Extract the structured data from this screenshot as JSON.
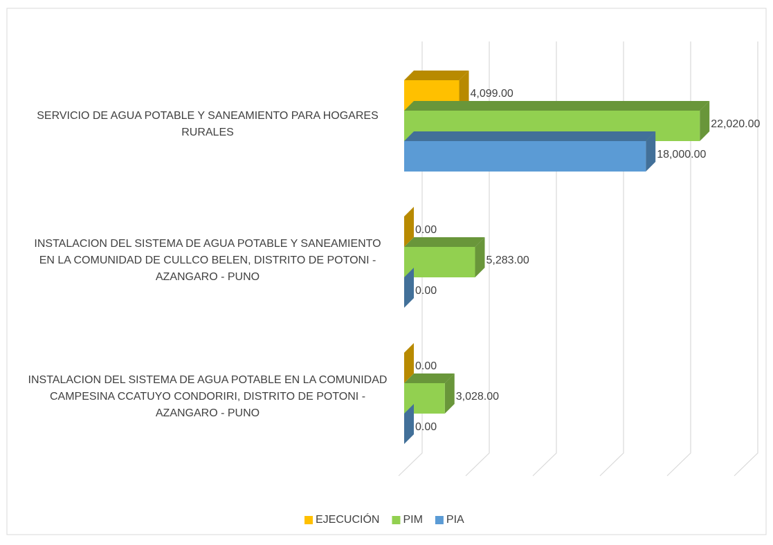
{
  "chart_data": {
    "type": "bar3d_horizontal",
    "categories": [
      "SERVICIO DE AGUA POTABLE Y SANEAMIENTO PARA HOGARES RURALES",
      "INSTALACION DEL SISTEMA DE AGUA POTABLE Y SANEAMIENTO EN LA COMUNIDAD DE CULLCO BELEN, DISTRITO DE POTONI - AZANGARO - PUNO",
      "INSTALACION DEL SISTEMA DE AGUA POTABLE EN LA COMUNIDAD CAMPESINA CCATUYO CONDORIRI, DISTRITO DE POTONI - AZANGARO - PUNO"
    ],
    "series": [
      {
        "name": "EJECUCIÓN",
        "color": "#ffc000",
        "values": [
          4099,
          0,
          0
        ],
        "value_labels": [
          "4,099.00",
          "0.00",
          "0.00"
        ]
      },
      {
        "name": "PIM",
        "color": "#92d050",
        "values": [
          22020,
          5283,
          3028
        ],
        "value_labels": [
          "22,020.00",
          "5,283.00",
          "3,028.00"
        ]
      },
      {
        "name": "PIA",
        "color": "#5b9bd5",
        "values": [
          18000,
          0,
          0
        ],
        "value_labels": [
          "18,000.00",
          "0.00",
          "0.00"
        ]
      }
    ],
    "xlim": [
      0,
      25000
    ],
    "xticks": [
      0,
      5000,
      10000,
      15000,
      20000,
      25000
    ],
    "grid": true,
    "legend": "bottom"
  }
}
